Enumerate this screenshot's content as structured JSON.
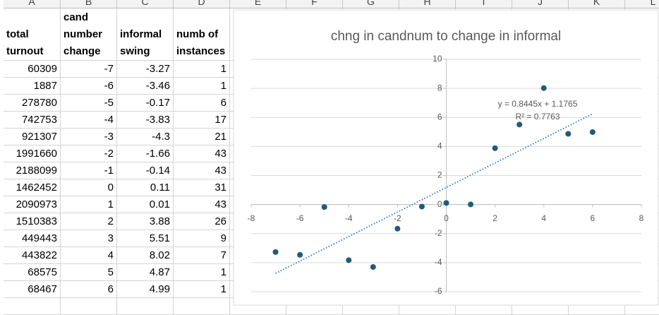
{
  "sheet": {
    "columns": [
      "A",
      "B",
      "C",
      "D",
      "E",
      "F",
      "G",
      "H",
      "I",
      "J",
      "K",
      "L"
    ],
    "table": {
      "header": [
        "total turnout",
        "cand number change",
        "informal swing",
        "numb of instances"
      ],
      "rows": [
        [
          "60309",
          "-7",
          "-3.27",
          "1"
        ],
        [
          "1887",
          "-6",
          "-3.46",
          "1"
        ],
        [
          "278780",
          "-5",
          "-0.17",
          "6"
        ],
        [
          "742753",
          "-4",
          "-3.83",
          "17"
        ],
        [
          "921307",
          "-3",
          "-4.3",
          "21"
        ],
        [
          "1991660",
          "-2",
          "-1.66",
          "43"
        ],
        [
          "2188099",
          "-1",
          "-0.14",
          "43"
        ],
        [
          "1462452",
          "0",
          "0.11",
          "31"
        ],
        [
          "2090973",
          "1",
          "0.01",
          "43"
        ],
        [
          "1510383",
          "2",
          "3.88",
          "26"
        ],
        [
          "449443",
          "3",
          "5.51",
          "9"
        ],
        [
          "443822",
          "4",
          "8.02",
          "7"
        ],
        [
          "68575",
          "5",
          "4.87",
          "1"
        ],
        [
          "68467",
          "6",
          "4.99",
          "1"
        ]
      ]
    }
  },
  "chart_data": {
    "type": "scatter",
    "title": "chng in candnum to change in informal",
    "x": [
      -7,
      -6,
      -5,
      -4,
      -3,
      -2,
      -1,
      0,
      1,
      2,
      3,
      4,
      5,
      6
    ],
    "values": [
      -3.27,
      -3.46,
      -0.17,
      -3.83,
      -4.3,
      -1.66,
      -0.14,
      0.11,
      0.01,
      3.88,
      5.51,
      8.02,
      4.87,
      4.99
    ],
    "color": "#1f5b7c",
    "xlim": [
      -8,
      8
    ],
    "ylim": [
      -6,
      10
    ],
    "xticks": [
      -8,
      -6,
      -4,
      -2,
      0,
      2,
      4,
      6,
      8
    ],
    "yticks": [
      -6,
      -4,
      -2,
      0,
      2,
      4,
      6,
      8,
      10
    ],
    "grid": true,
    "trendline": {
      "slope": 0.8445,
      "intercept": 1.1765,
      "label": "y = 0.8445x + 1.1765",
      "r2_label": "R² = 0.7763",
      "color": "#2e75b6"
    }
  }
}
